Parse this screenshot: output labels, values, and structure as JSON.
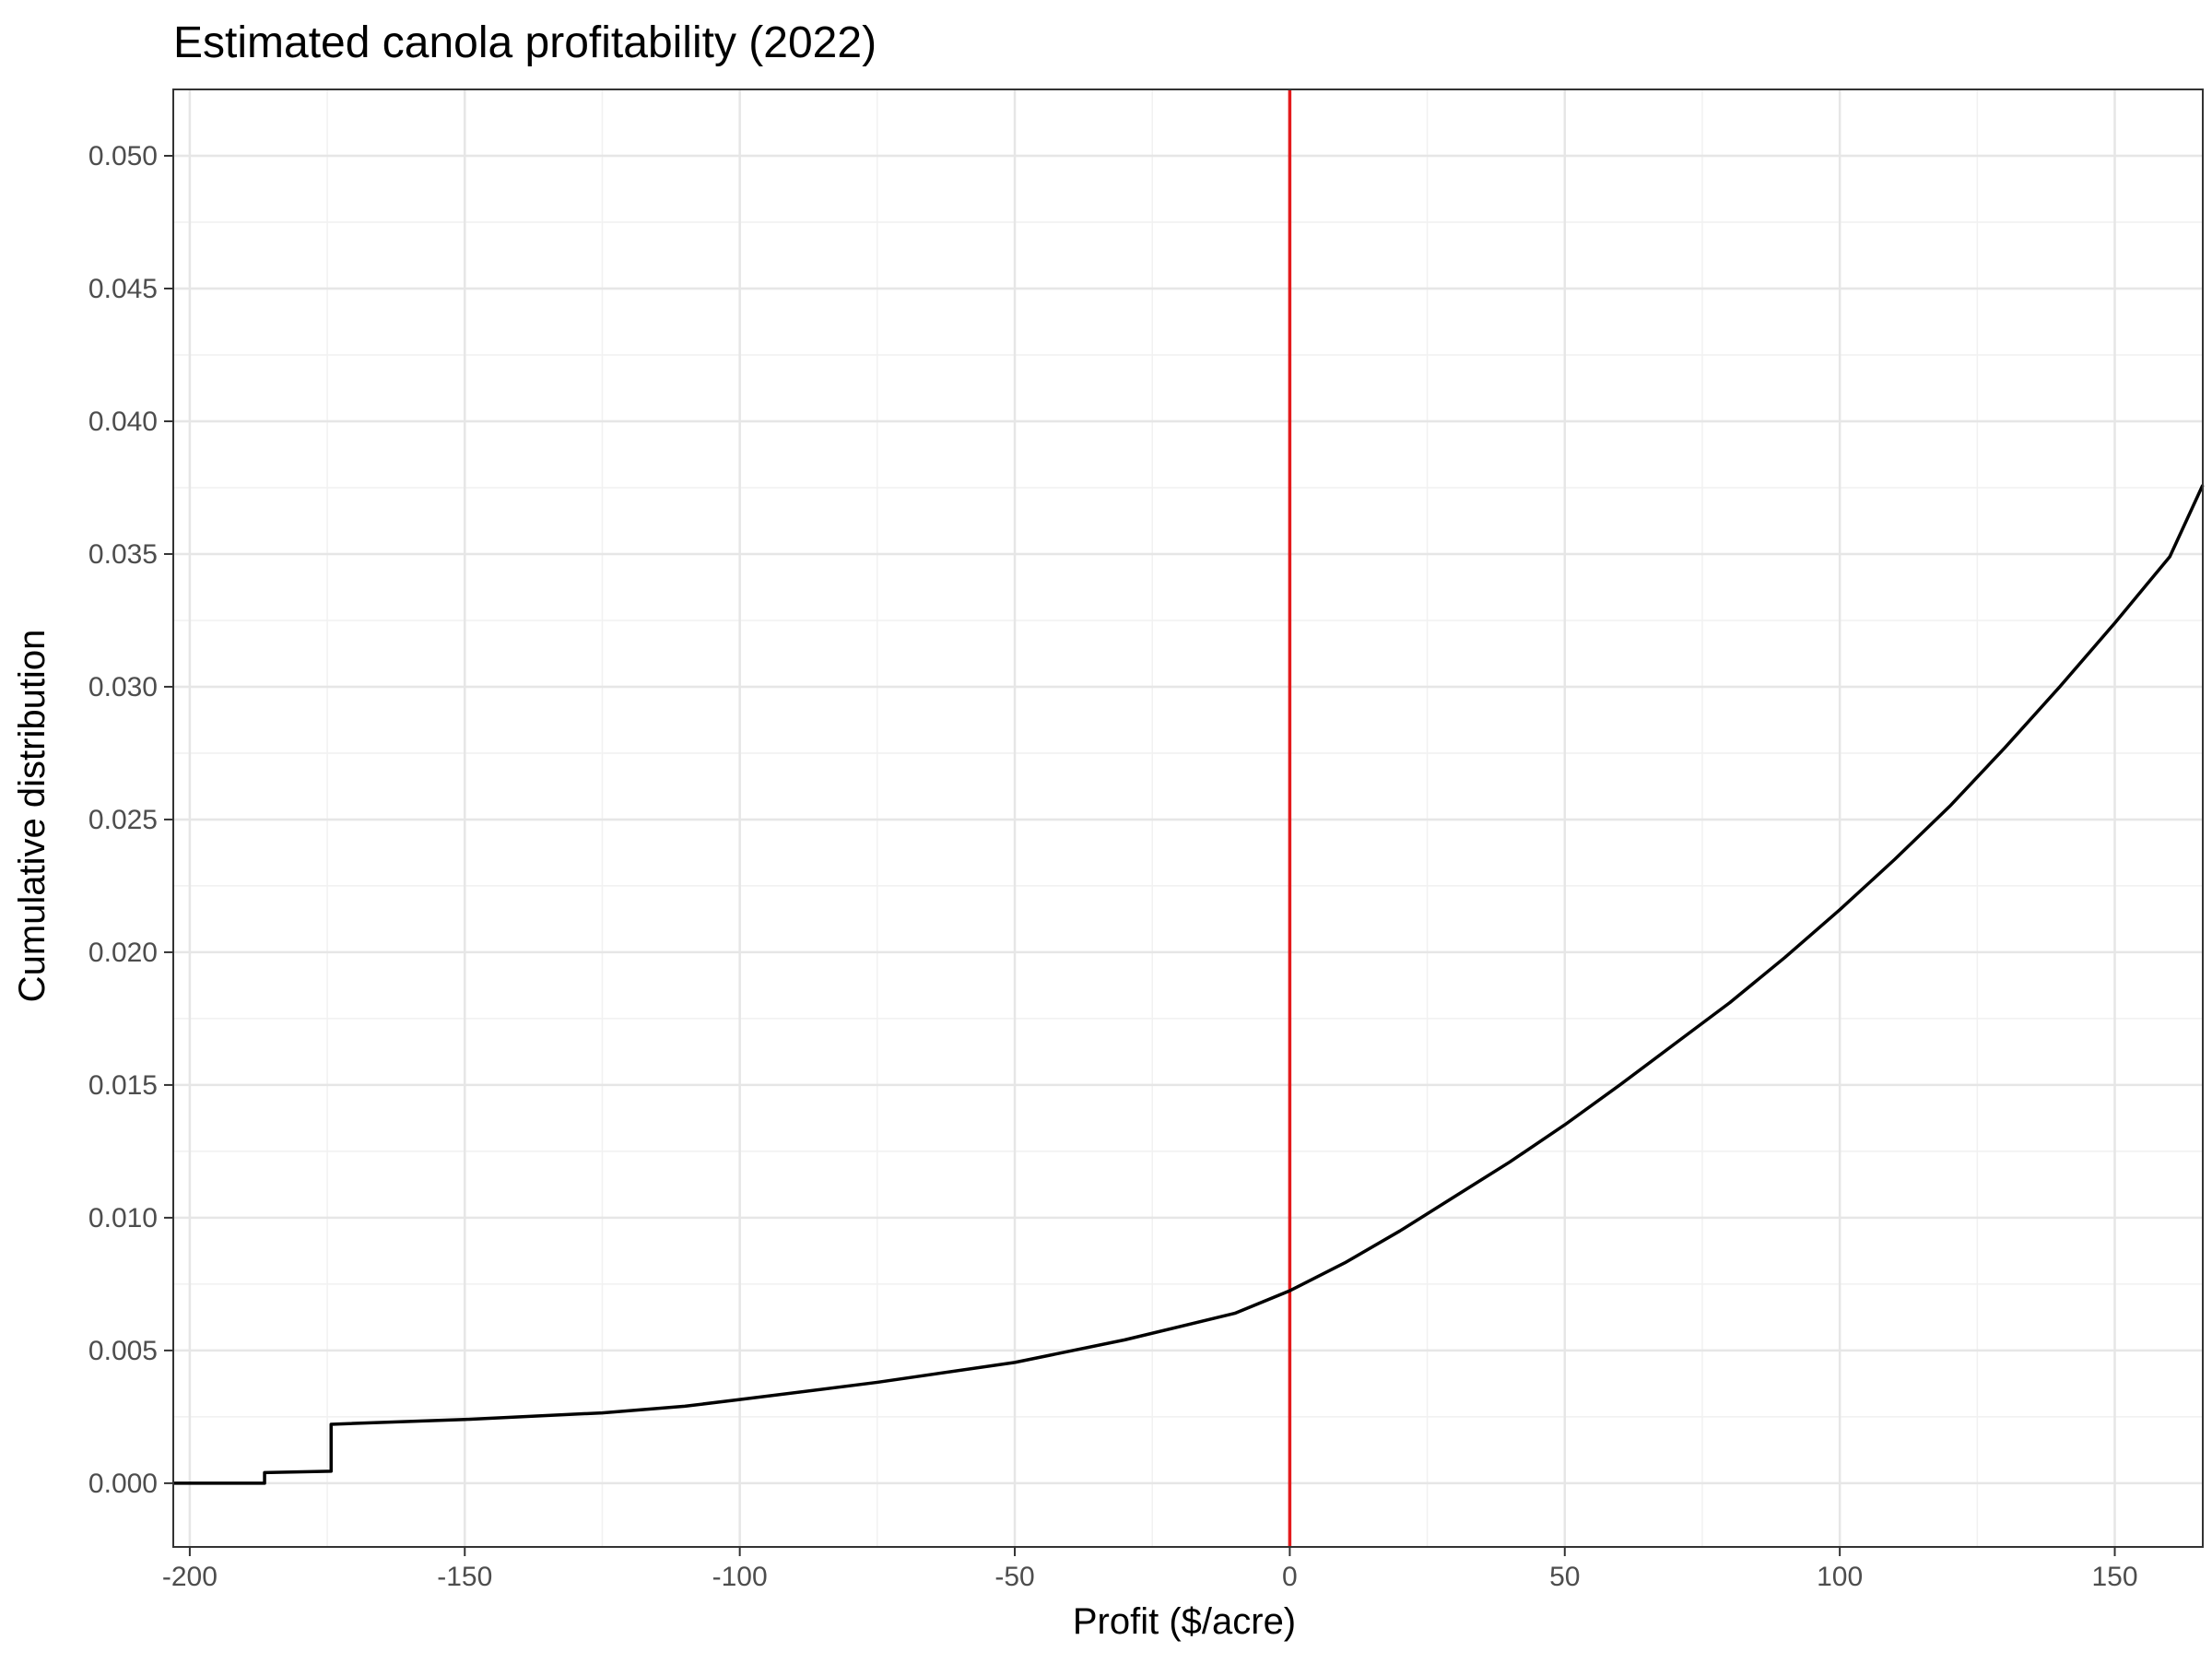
{
  "chart_data": {
    "type": "line",
    "title": "Estimated canola profitability (2022)",
    "xlabel": "Profit ($/acre)",
    "ylabel": "Cumulative distribution",
    "xlim": [
      -203,
      166
    ],
    "ylim": [
      -0.0024,
      0.0525
    ],
    "x_ticks": [
      -200,
      -150,
      -100,
      -50,
      0,
      50,
      100,
      150
    ],
    "x_tick_labels": [
      "-200",
      "-150",
      "-100",
      "-50",
      "0",
      "50",
      "100",
      "150"
    ],
    "y_ticks": [
      0.0,
      0.005,
      0.01,
      0.015,
      0.02,
      0.025,
      0.03,
      0.035,
      0.04,
      0.045,
      0.05
    ],
    "y_tick_labels": [
      "0.000",
      "0.005",
      "0.010",
      "0.015",
      "0.020",
      "0.025",
      "0.030",
      "0.035",
      "0.040",
      "0.045",
      "0.050"
    ],
    "grid": true,
    "legend": "none",
    "vline": {
      "x": 0,
      "color": "#e31a1c"
    },
    "series": [
      {
        "color": "#000000",
        "step": true,
        "x": [
          -203,
          -186.4,
          -186.4,
          -174.3,
          -174.3,
          -150,
          -125,
          -110,
          -100,
          -75,
          -50,
          -30,
          -10,
          0,
          10,
          20,
          30,
          40,
          50,
          60,
          70,
          80,
          90,
          100,
          110,
          120,
          130,
          140,
          150,
          160,
          166
        ],
        "y": [
          0.0,
          0.0,
          0.0004,
          0.00045,
          0.00222,
          0.0024,
          0.00265,
          0.0029,
          0.00315,
          0.0038,
          0.00455,
          0.0054,
          0.0064,
          0.00725,
          0.0083,
          0.0095,
          0.0108,
          0.0121,
          0.0135,
          0.015,
          0.01655,
          0.0181,
          0.0198,
          0.0216,
          0.0235,
          0.0255,
          0.0277,
          0.03,
          0.0324,
          0.0349,
          0.0376
        ]
      }
    ]
  }
}
